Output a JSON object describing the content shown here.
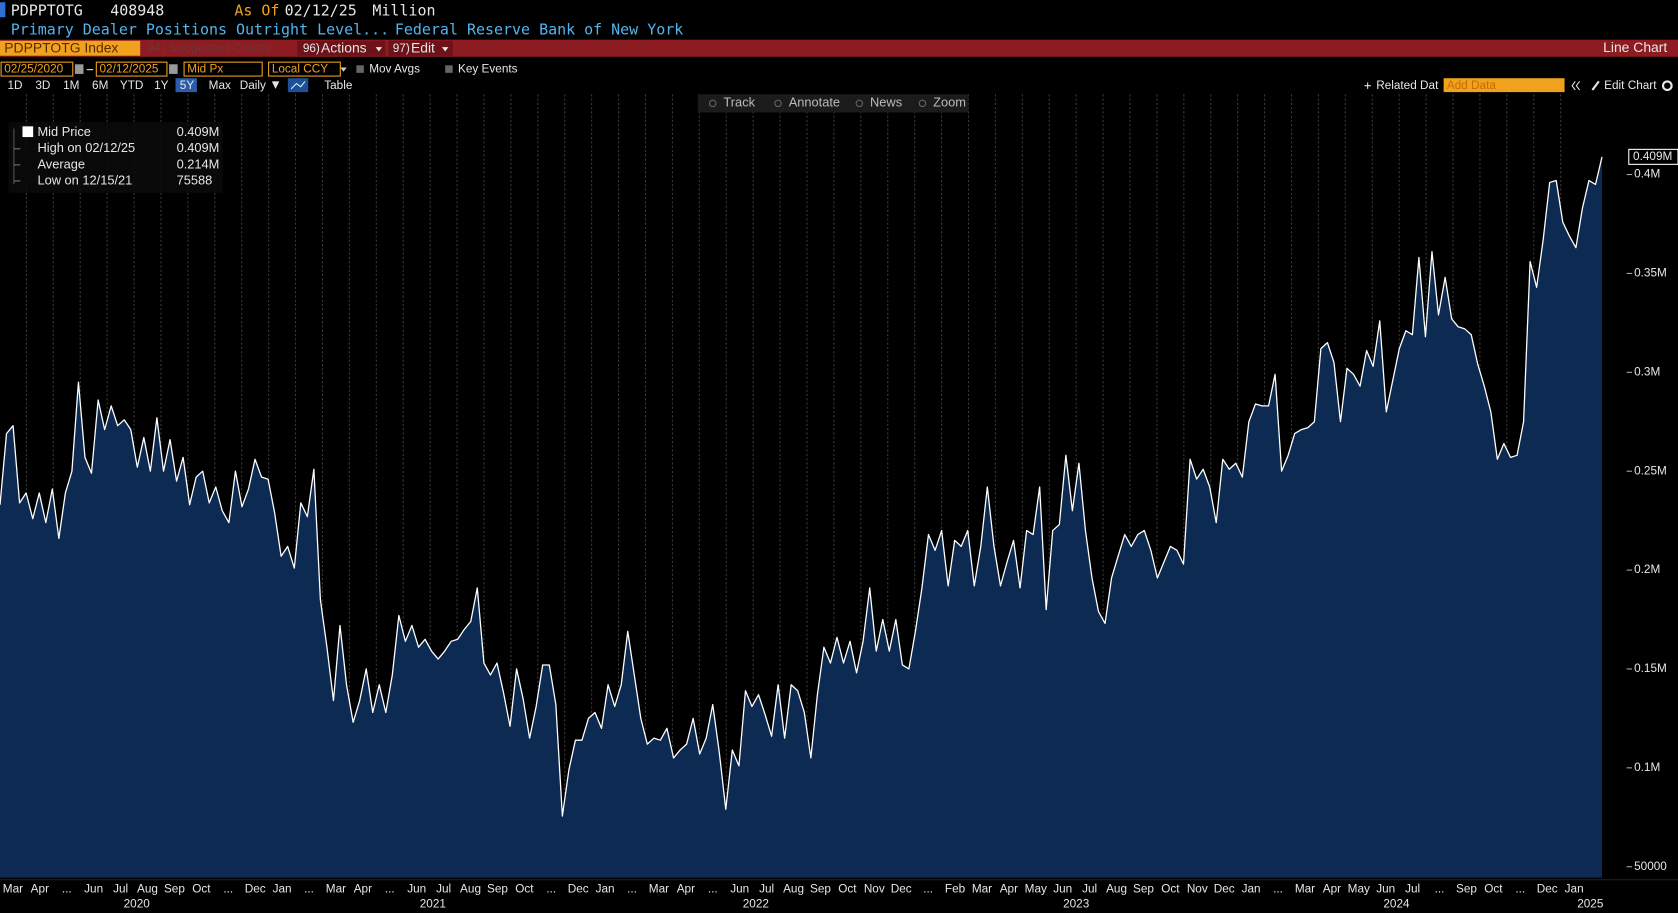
{
  "header": {
    "ticker": "PDPPTOTG",
    "last": "408948",
    "as_of_label": "As Of",
    "as_of": "02/12/25",
    "units": "Million",
    "description": "Primary Dealer Positions Outright Level...",
    "source": "Federal Reserve Bank of New York"
  },
  "menu": {
    "security": "PDPPTOTG Index",
    "suggested_num": "94)",
    "suggested": "Suggested Charts",
    "actions_num": "96)",
    "actions": "Actions",
    "edit_num": "97)",
    "edit": "Edit",
    "view": "Line Chart"
  },
  "controls": {
    "start": "02/25/2020",
    "end": "02/12/2025",
    "field": "Mid Px",
    "currency": "Local CCY",
    "mov_avgs": "Mov Avgs",
    "key_events": "Key Events",
    "ranges": [
      "1D",
      "3D",
      "1M",
      "6M",
      "YTD",
      "1Y",
      "5Y",
      "Max"
    ],
    "selected_range": "5Y",
    "frequency": "Daily",
    "table": "Table",
    "related": "Related Dat",
    "add_data": "Add Data",
    "edit_chart": "Edit Chart"
  },
  "chart_tools": [
    "Track",
    "Annotate",
    "News",
    "Zoom"
  ],
  "legend_stats": [
    {
      "label": "High on 02/12/25",
      "value": "0.409M"
    },
    {
      "label": "Average",
      "value": "0.214M"
    },
    {
      "label": "Low on 12/15/21",
      "value": "75588"
    }
  ],
  "chart_data": {
    "type": "area",
    "series": [
      {
        "name": "Mid Price",
        "legend_value": "0.409M",
        "color": "#ffffff",
        "fill": "#0d2a52",
        "values": [
          233000,
          269000,
          273000,
          234000,
          239000,
          226000,
          239000,
          224000,
          241000,
          216000,
          239000,
          250000,
          295000,
          257000,
          249000,
          286000,
          271000,
          283000,
          273000,
          276000,
          271000,
          252000,
          267000,
          250000,
          277000,
          250000,
          266000,
          245000,
          257000,
          233000,
          247000,
          250000,
          234000,
          242000,
          230000,
          224000,
          250000,
          232000,
          241000,
          256000,
          247000,
          246000,
          229000,
          207000,
          212000,
          201000,
          234000,
          227000,
          251000,
          185000,
          161000,
          134000,
          172000,
          142000,
          123000,
          134000,
          150000,
          128000,
          142000,
          128000,
          147000,
          177000,
          164000,
          172000,
          161000,
          165000,
          159000,
          155000,
          159000,
          164000,
          165000,
          170000,
          174000,
          191000,
          153000,
          147000,
          153000,
          138000,
          121000,
          150000,
          135000,
          115000,
          131000,
          152000,
          152000,
          132000,
          75588,
          99000,
          114000,
          114000,
          125000,
          128000,
          120000,
          142000,
          131000,
          142000,
          169000,
          147000,
          125000,
          112000,
          115000,
          114000,
          120000,
          105000,
          109000,
          112000,
          125000,
          107000,
          115000,
          132000,
          108000,
          79000,
          109000,
          101000,
          139000,
          131000,
          137000,
          127000,
          116000,
          142000,
          115000,
          142000,
          139000,
          128000,
          105000,
          137000,
          161000,
          153000,
          166000,
          153000,
          164000,
          148000,
          164000,
          191000,
          159000,
          175000,
          159000,
          175000,
          152000,
          150000,
          169000,
          191000,
          218000,
          210000,
          220000,
          192000,
          215000,
          212000,
          220000,
          192000,
          212000,
          242000,
          212000,
          192000,
          204000,
          215000,
          191000,
          220000,
          218000,
          242000,
          180000,
          220000,
          223000,
          258000,
          230000,
          254000,
          220000,
          196000,
          179000,
          173000,
          196000,
          207000,
          218000,
          212000,
          218000,
          220000,
          210000,
          196000,
          204000,
          212000,
          210000,
          203000,
          256000,
          246000,
          251000,
          242000,
          224000,
          256000,
          251000,
          254000,
          247000,
          275000,
          284000,
          283000,
          283000,
          299000,
          250000,
          258000,
          269000,
          271000,
          272000,
          275000,
          312000,
          315000,
          305000,
          275000,
          302000,
          299000,
          293000,
          311000,
          303000,
          326000,
          280000,
          296000,
          312000,
          321000,
          319000,
          358000,
          318000,
          361000,
          329000,
          348000,
          327000,
          323000,
          322000,
          319000,
          304000,
          293000,
          280000,
          256000,
          264000,
          257000,
          258000,
          275000,
          356000,
          343000,
          367000,
          396000,
          397000,
          376000,
          369000,
          363000,
          383000,
          397000,
          395000,
          408948
        ]
      }
    ],
    "last_value_label": "0.409M",
    "ylim": [
      44500,
      440600
    ],
    "yticks": [
      50000,
      {
        "value": 100000,
        "label": "0.1M"
      },
      {
        "value": 150000,
        "label": "0.15M"
      },
      {
        "value": 200000,
        "label": "0.2M"
      },
      {
        "value": 250000,
        "label": "0.25M"
      },
      {
        "value": 300000,
        "label": "0.3M"
      },
      {
        "value": 350000,
        "label": "0.35M"
      },
      {
        "value": 400000,
        "label": "0.4M"
      }
    ],
    "xlim": [
      2.02,
      62.45
    ],
    "xticks": [
      {
        "value": 2,
        "label": "Mar"
      },
      {
        "value": 3,
        "label": "Apr"
      },
      {
        "value": 4,
        "label": "..."
      },
      {
        "value": 5,
        "label": "Jun"
      },
      {
        "value": 6,
        "label": "Jul"
      },
      {
        "value": 7,
        "label": "Aug"
      },
      {
        "value": 8,
        "label": "Sep"
      },
      {
        "value": 9,
        "label": "Oct"
      },
      {
        "value": 10,
        "label": "..."
      },
      {
        "value": 11,
        "label": "Dec"
      },
      {
        "value": 12,
        "label": "Jan"
      },
      {
        "value": 13,
        "label": "..."
      },
      {
        "value": 14,
        "label": "Mar"
      },
      {
        "value": 15,
        "label": "Apr"
      },
      {
        "value": 16,
        "label": "..."
      },
      {
        "value": 17,
        "label": "Jun"
      },
      {
        "value": 18,
        "label": "Jul"
      },
      {
        "value": 19,
        "label": "Aug"
      },
      {
        "value": 20,
        "label": "Sep"
      },
      {
        "value": 21,
        "label": "Oct"
      },
      {
        "value": 22,
        "label": "..."
      },
      {
        "value": 23,
        "label": "Dec"
      },
      {
        "value": 24,
        "label": "Jan"
      },
      {
        "value": 25,
        "label": "..."
      },
      {
        "value": 26,
        "label": "Mar"
      },
      {
        "value": 27,
        "label": "Apr"
      },
      {
        "value": 28,
        "label": "..."
      },
      {
        "value": 29,
        "label": "Jun"
      },
      {
        "value": 30,
        "label": "Jul"
      },
      {
        "value": 31,
        "label": "Aug"
      },
      {
        "value": 32,
        "label": "Sep"
      },
      {
        "value": 33,
        "label": "Oct"
      },
      {
        "value": 34,
        "label": "Nov"
      },
      {
        "value": 35,
        "label": "Dec"
      },
      {
        "value": 36,
        "label": "..."
      },
      {
        "value": 37,
        "label": "Feb"
      },
      {
        "value": 38,
        "label": "Mar"
      },
      {
        "value": 39,
        "label": "Apr"
      },
      {
        "value": 40,
        "label": "May"
      },
      {
        "value": 41,
        "label": "Jun"
      },
      {
        "value": 42,
        "label": "Jul"
      },
      {
        "value": 43,
        "label": "Aug"
      },
      {
        "value": 44,
        "label": "Sep"
      },
      {
        "value": 45,
        "label": "Oct"
      },
      {
        "value": 46,
        "label": "Nov"
      },
      {
        "value": 47,
        "label": "Dec"
      },
      {
        "value": 48,
        "label": "Jan"
      },
      {
        "value": 49,
        "label": "..."
      },
      {
        "value": 50,
        "label": "Mar"
      },
      {
        "value": 51,
        "label": "Apr"
      },
      {
        "value": 52,
        "label": "May"
      },
      {
        "value": 53,
        "label": "Jun"
      },
      {
        "value": 54,
        "label": "Jul"
      },
      {
        "value": 55,
        "label": "..."
      },
      {
        "value": 56,
        "label": "Sep"
      },
      {
        "value": 57,
        "label": "Oct"
      },
      {
        "value": 58,
        "label": "..."
      },
      {
        "value": 59,
        "label": "Dec"
      },
      {
        "value": 60,
        "label": "Jan"
      }
    ],
    "year_ticks": [
      {
        "value": 7.1,
        "label": "2020"
      },
      {
        "value": 18.1,
        "label": "2021"
      },
      {
        "value": 30.1,
        "label": "2022"
      },
      {
        "value": 42.0,
        "label": "2023"
      },
      {
        "value": 53.9,
        "label": "2024"
      },
      {
        "value": 61.1,
        "label": "2025"
      }
    ],
    "grid": "x"
  }
}
